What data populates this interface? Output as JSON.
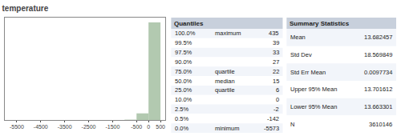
{
  "chart_data": [
    {
      "type": "histogram",
      "title": "temperature",
      "bins": [
        -6000,
        -5000,
        -4000,
        -3000,
        -2000,
        -1000,
        -500,
        0,
        500
      ],
      "counts": [
        0.00015,
        0.0001,
        0.0001,
        0.00015,
        0.0002,
        0.003,
        0.06,
        0.88
      ],
      "color": "#b2c9b0",
      "xlim": [
        -6000,
        700
      ],
      "xticks": [
        -5500,
        -4500,
        -3500,
        -2500,
        -1500,
        -500,
        0,
        500
      ],
      "ylim": [
        0,
        0.924
      ],
      "grid": false,
      "tick_labels": "x"
    },
    {
      "type": "table",
      "title": "Quantiles",
      "rows": [
        [
          "100.0%",
          "maximum",
          435
        ],
        [
          "99.5%",
          null,
          39
        ],
        [
          "97.5%",
          null,
          33
        ],
        [
          "90.0%",
          null,
          27
        ],
        [
          "75.0%",
          "quartile",
          22
        ],
        [
          "50.0%",
          "median",
          15
        ],
        [
          "25.0%",
          "quartile",
          6
        ],
        [
          "10.0%",
          null,
          0
        ],
        [
          "2.5%",
          null,
          -2
        ],
        [
          "0.5%",
          null,
          -142
        ],
        [
          "0.0%",
          "minimum",
          -5573
        ]
      ]
    },
    {
      "type": "table",
      "title": "Summary Statistics",
      "rows": [
        [
          "Mean",
          13.682457
        ],
        [
          "Std Dev",
          18.569849
        ],
        [
          "Std Err Mean",
          0.0097734
        ],
        [
          "Upper 95% Mean",
          13.701612
        ],
        [
          "Lower 95% Mean",
          13.663301
        ],
        [
          "N",
          3610146
        ]
      ]
    }
  ]
}
